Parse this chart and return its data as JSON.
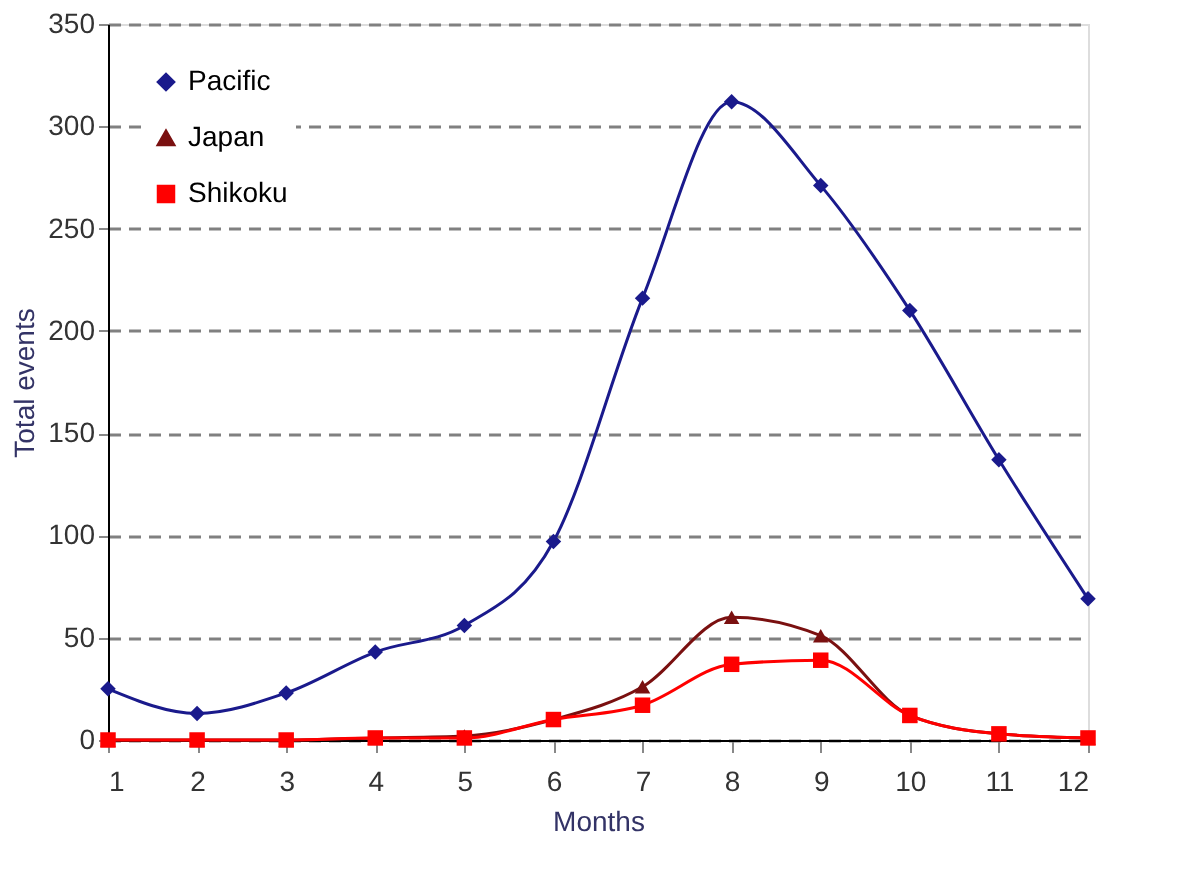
{
  "chart_data": {
    "type": "line",
    "xlabel": "Months",
    "ylabel": "Total events",
    "x": [
      1,
      2,
      3,
      4,
      5,
      6,
      7,
      8,
      9,
      10,
      11,
      12
    ],
    "xlim": [
      1,
      12
    ],
    "xticks": [
      1,
      2,
      3,
      4,
      5,
      6,
      7,
      8,
      9,
      10,
      11,
      12
    ],
    "ylim": [
      0,
      350
    ],
    "yticks": [
      0,
      50,
      100,
      150,
      200,
      250,
      300,
      350
    ],
    "grid": "y",
    "legend": "top left",
    "line_style": "solid",
    "series": [
      {
        "name": "Pacific",
        "color": "#1a1a8c",
        "marker": "diamond",
        "values": [
          25,
          13,
          23,
          43,
          56,
          97,
          216,
          312,
          271,
          210,
          137,
          69
        ]
      },
      {
        "name": "Japan",
        "color": "#7a1010",
        "marker": "triangle",
        "values": [
          0,
          0,
          0,
          1,
          2,
          10,
          26,
          60,
          51,
          12,
          3,
          1
        ]
      },
      {
        "name": "Shikoku",
        "color": "#ff0000",
        "marker": "square",
        "values": [
          0,
          0,
          0,
          1,
          1,
          10,
          17,
          37,
          39,
          12,
          3,
          1
        ]
      }
    ]
  }
}
